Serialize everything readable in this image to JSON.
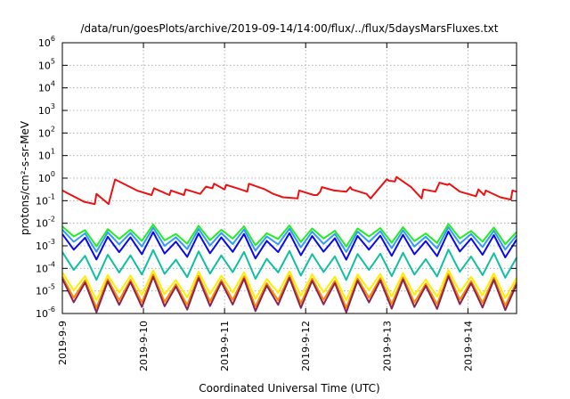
{
  "chart_data": {
    "type": "line",
    "title": "/data/run/goesPlots/archive/2019-09-14/14:00/flux/../flux/5daysMarsFluxes.txt",
    "xlabel": "Coordinated Universal Time (UTC)",
    "ylabel": "protons/cm²-s-sr-MeV",
    "y_scale": "log",
    "ylim_exp": [
      -6,
      6
    ],
    "x_tick_labels": [
      "2019-9-9",
      "2019-9-10",
      "2019-9-11",
      "2019-9-12",
      "2019-9-13",
      "2019-9-14"
    ],
    "x_tick_days": [
      0,
      1,
      2,
      3,
      4,
      5
    ],
    "xlim_days": [
      0,
      5.6
    ],
    "y_tick_labels": [
      {
        "base": "10",
        "exp": "6"
      },
      {
        "base": "10",
        "exp": "5"
      },
      {
        "base": "10",
        "exp": "4"
      },
      {
        "base": "10",
        "exp": "3"
      },
      {
        "base": "10",
        "exp": "2"
      },
      {
        "base": "10",
        "exp": "1"
      },
      {
        "base": "10",
        "exp": "0"
      },
      {
        "base": "10",
        "exp": "-1"
      },
      {
        "base": "10",
        "exp": "-2"
      },
      {
        "base": "10",
        "exp": "-3"
      },
      {
        "base": "10",
        "exp": "-4"
      },
      {
        "base": "10",
        "exp": "-5"
      },
      {
        "base": "10",
        "exp": "-6"
      }
    ],
    "y_tick_exps": [
      6,
      5,
      4,
      3,
      2,
      1,
      0,
      -1,
      -2,
      -3,
      -4,
      -5,
      -6
    ],
    "grid": true,
    "legend": "none",
    "series": [
      {
        "color": "#ee1111",
        "x": [
          0.0,
          0.27,
          0.4,
          0.42,
          0.57,
          0.65,
          0.92,
          1.1,
          1.13,
          1.32,
          1.34,
          1.5,
          1.52,
          1.7,
          1.77,
          1.85,
          1.87,
          2.0,
          2.02,
          2.2,
          2.28,
          2.3,
          2.5,
          2.6,
          2.72,
          2.9,
          2.92,
          3.1,
          3.14,
          3.18,
          3.2,
          3.35,
          3.5,
          3.55,
          3.57,
          3.75,
          3.8,
          4.0,
          4.03,
          4.1,
          4.12,
          4.3,
          4.43,
          4.45,
          4.6,
          4.65,
          4.75,
          4.77,
          4.9,
          5.1,
          5.13,
          5.2,
          5.22,
          5.4,
          5.53,
          5.55,
          5.6
        ],
        "y": [
          -0.55,
          -1.05,
          -1.15,
          -0.7,
          -1.15,
          -0.06,
          -0.55,
          -0.75,
          -0.45,
          -0.75,
          -0.55,
          -0.75,
          -0.5,
          -0.7,
          -0.38,
          -0.45,
          -0.25,
          -0.5,
          -0.3,
          -0.5,
          -0.6,
          -0.25,
          -0.5,
          -0.7,
          -0.85,
          -0.9,
          -0.55,
          -0.75,
          -0.75,
          -0.6,
          -0.4,
          -0.55,
          -0.6,
          -0.4,
          -0.5,
          -0.7,
          -0.9,
          -0.05,
          -0.12,
          -0.15,
          0.05,
          -0.4,
          -0.9,
          -0.5,
          -0.6,
          -0.2,
          -0.3,
          -0.25,
          -0.6,
          -0.8,
          -0.5,
          -0.75,
          -0.55,
          -0.85,
          -0.95,
          -0.55,
          -0.6
        ]
      },
      {
        "color": "#22ee22",
        "generator": "zigzag",
        "params": [
          -2.5,
          -2.8,
          -2.25
        ]
      },
      {
        "color": "#3399ff",
        "generator": "zigzag",
        "params": [
          -2.65,
          -3.05,
          -2.4
        ]
      },
      {
        "color": "#0a0aee",
        "generator": "zigzag",
        "params": [
          -2.9,
          -3.4,
          -2.6
        ]
      },
      {
        "color": "#11c0a0",
        "generator": "zigzag",
        "params": [
          -3.75,
          -4.3,
          -3.4
        ]
      },
      {
        "color": "#ffee00",
        "generator": "zigzag",
        "params": [
          -4.65,
          -5.2,
          -4.3
        ]
      },
      {
        "color": "#ff8800",
        "generator": "zigzag",
        "params": [
          -4.85,
          -5.55,
          -4.5
        ]
      },
      {
        "color": "#8b2252",
        "generator": "zigzag",
        "params": [
          -5.0,
          -5.75,
          -4.6
        ]
      }
    ]
  }
}
